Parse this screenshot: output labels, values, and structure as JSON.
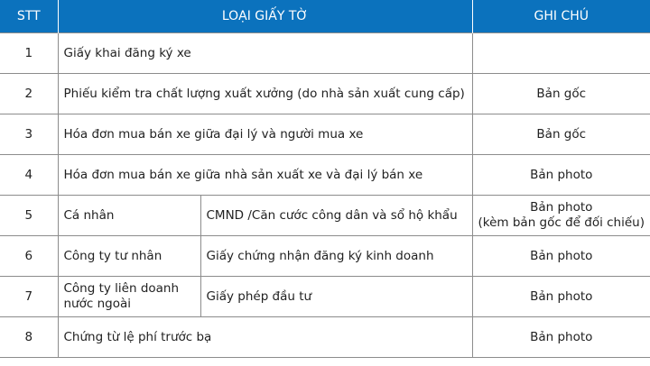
{
  "header": {
    "stt": "STT",
    "type": "LOẠI GIẤY TỜ",
    "note": "GHI CHÚ"
  },
  "colors": {
    "header_bg": "#0b72bd",
    "border": "#8c8c8c"
  },
  "rows": [
    {
      "stt": "1",
      "doc": "Giấy khai đăng ký xe",
      "note": ""
    },
    {
      "stt": "2",
      "doc": "Phiếu kiểm tra chất lượng xuất xưởng (do nhà sản xuất cung cấp)",
      "note": "Bản gốc"
    },
    {
      "stt": "3",
      "doc": "Hóa đơn mua bán xe giữa đại lý và người mua xe",
      "note": "Bản gốc"
    },
    {
      "stt": "4",
      "doc": "Hóa đơn mua bán xe giữa nhà sản xuất xe và đại lý bán xe",
      "note": "Bản photo"
    },
    {
      "stt": "5",
      "who": "Cá nhân",
      "doc": "CMND /Căn cước công dân và sổ hộ khẩu",
      "note": "Bản photo",
      "note2": "(kèm bản gốc để đối chiếu)"
    },
    {
      "stt": "6",
      "who": "Công ty tư nhân",
      "doc": "Giấy chứng nhận đăng ký kinh doanh",
      "note": "Bản photo"
    },
    {
      "stt": "7",
      "who": "Công ty liên doanh nước ngoài",
      "doc": "Giấy phép đầu tư",
      "note": "Bản photo"
    },
    {
      "stt": "8",
      "doc": "Chứng từ lệ phí trước bạ",
      "note": "Bản photo"
    }
  ]
}
